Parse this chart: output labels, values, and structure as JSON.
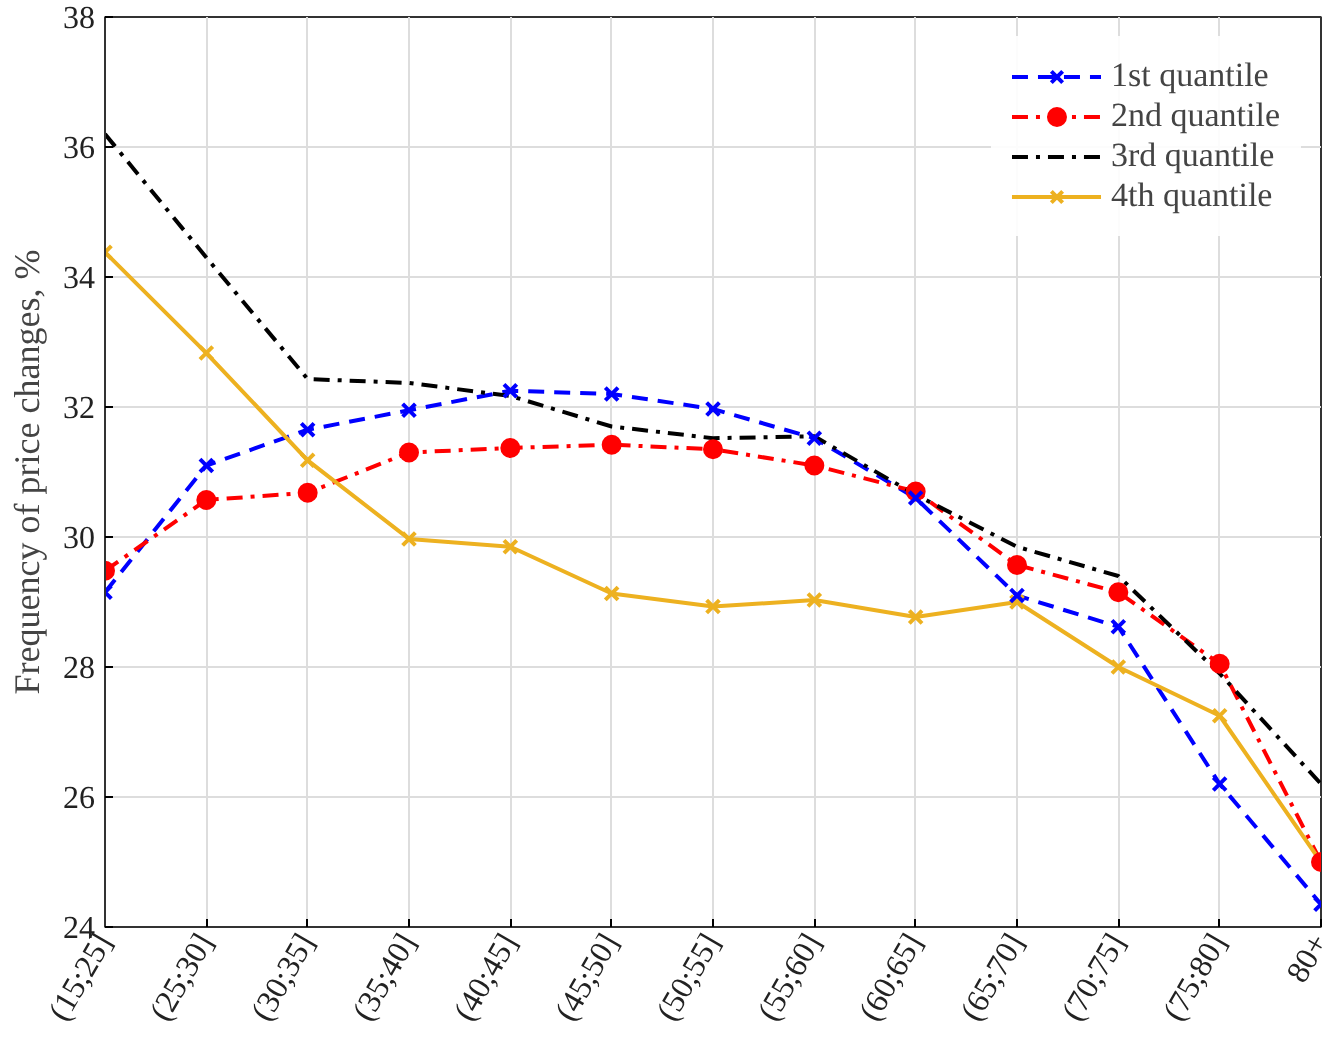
{
  "chart_data": {
    "type": "line",
    "ylabel": "Frequency of price changes, %",
    "categories": [
      "(15;25]",
      "(25;30]",
      "(30;35]",
      "(35;40]",
      "(40;45]",
      "(45;50]",
      "(50;55]",
      "(55;60]",
      "(60;65]",
      "(65;70]",
      "(70;75]",
      "(75;80]",
      "80+"
    ],
    "series": [
      {
        "name": "1st quantile",
        "color": "#0000ff",
        "marker": "cross",
        "line_style": "dashed",
        "values": [
          29.15,
          31.1,
          31.65,
          31.95,
          32.25,
          32.2,
          31.97,
          31.52,
          30.6,
          29.1,
          28.62,
          26.2,
          24.35
        ]
      },
      {
        "name": "2nd quantile",
        "color": "#ff0000",
        "marker": "circle",
        "line_style": "dashdot",
        "values": [
          29.48,
          30.57,
          30.68,
          31.3,
          31.37,
          31.42,
          31.35,
          31.1,
          30.7,
          29.57,
          29.15,
          28.05,
          25.0
        ]
      },
      {
        "name": "3rd quantile",
        "color": "#000000",
        "marker": "none",
        "line_style": "dashdot",
        "values": [
          36.2,
          34.3,
          32.43,
          32.37,
          32.17,
          31.7,
          31.52,
          31.55,
          30.65,
          29.85,
          29.4,
          27.9,
          26.2
        ]
      },
      {
        "name": "4th quantile",
        "color": "#edb120",
        "marker": "cross",
        "line_style": "solid",
        "values": [
          34.38,
          32.83,
          31.18,
          29.97,
          29.85,
          29.13,
          28.93,
          29.03,
          28.77,
          29.0,
          28.0,
          27.25,
          25.0
        ]
      }
    ],
    "ylim": [
      24,
      38
    ],
    "yticks": [
      24,
      26,
      28,
      30,
      32,
      34,
      36,
      38
    ],
    "grid": true,
    "legend": "top right"
  }
}
